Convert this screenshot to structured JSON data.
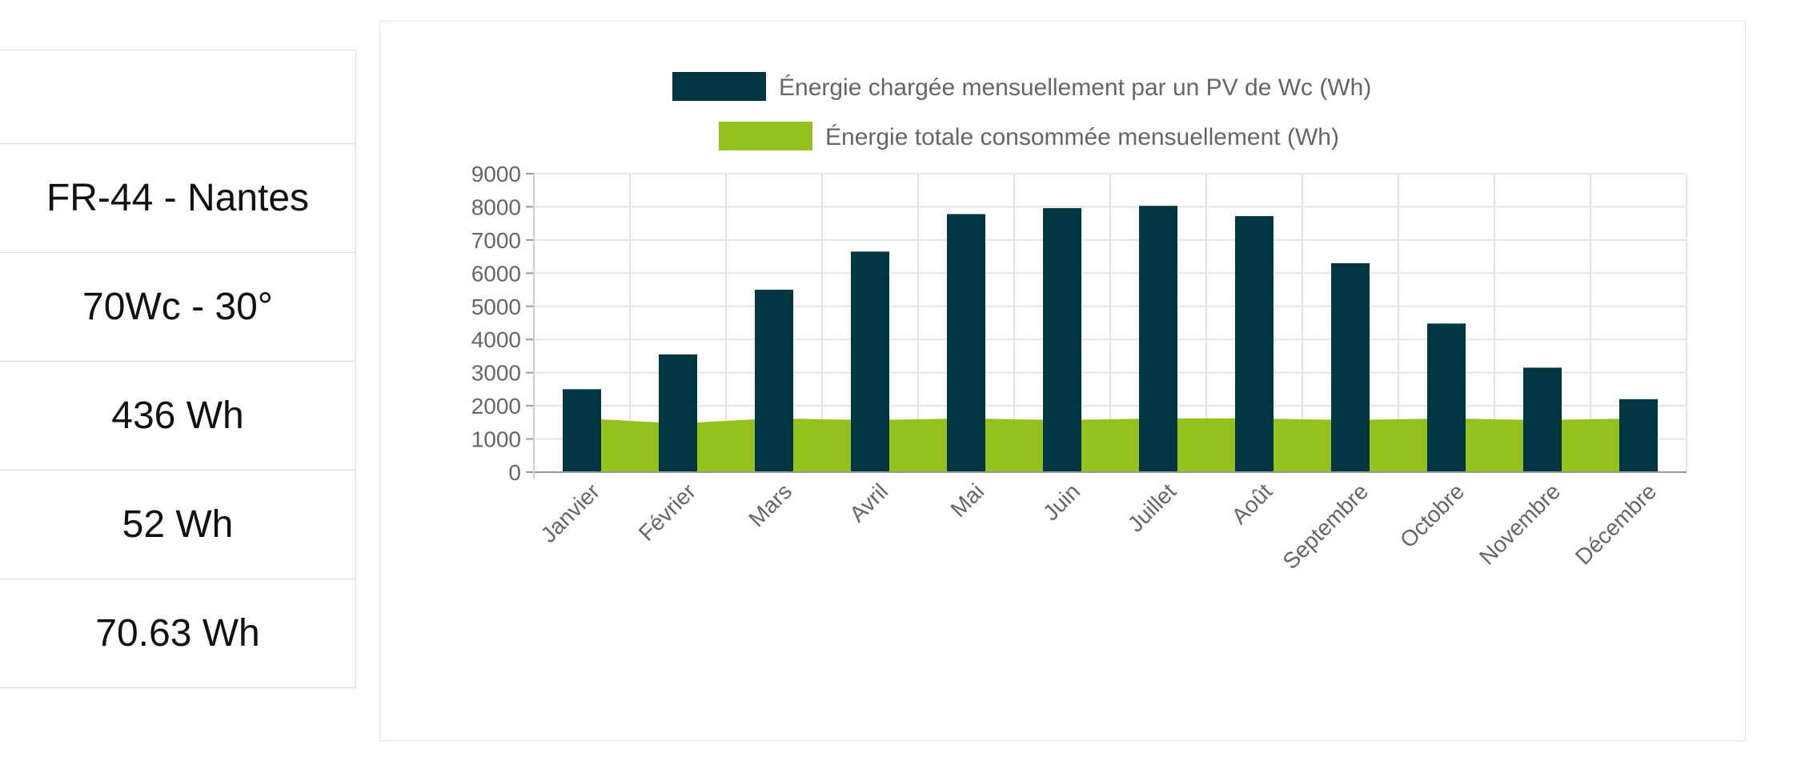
{
  "info": {
    "rows": [
      "",
      "FR-44 - Nantes",
      "70Wc - 30°",
      "436 Wh",
      "52 Wh",
      "70.63 Wh"
    ]
  },
  "colors": {
    "bar": "#003641",
    "area": "#95c11f",
    "grid": "#e6e6e6",
    "axis": "#999999",
    "tick": "#666666"
  },
  "chart_data": {
    "type": "bar",
    "categories": [
      "Janvier",
      "Février",
      "Mars",
      "Avril",
      "Mai",
      "Juin",
      "Juillet",
      "Août",
      "Septembre",
      "Octobre",
      "Novembre",
      "Décembre"
    ],
    "series": [
      {
        "name": "Énergie chargée mensuellement par un PV de  Wc (Wh)",
        "type": "bar",
        "values": [
          2500,
          3550,
          5500,
          6650,
          7780,
          7960,
          8030,
          7720,
          6300,
          4480,
          3150,
          2200
        ]
      },
      {
        "name": "Énergie totale consommée mensuellement (Wh)",
        "type": "area",
        "values": [
          1620,
          1470,
          1620,
          1570,
          1620,
          1570,
          1620,
          1620,
          1570,
          1620,
          1570,
          1620
        ]
      }
    ],
    "yticks": [
      0,
      1000,
      2000,
      3000,
      4000,
      5000,
      6000,
      7000,
      8000,
      9000
    ],
    "ylim": [
      0,
      9000
    ],
    "grid": true,
    "legend_position": "top-center"
  }
}
